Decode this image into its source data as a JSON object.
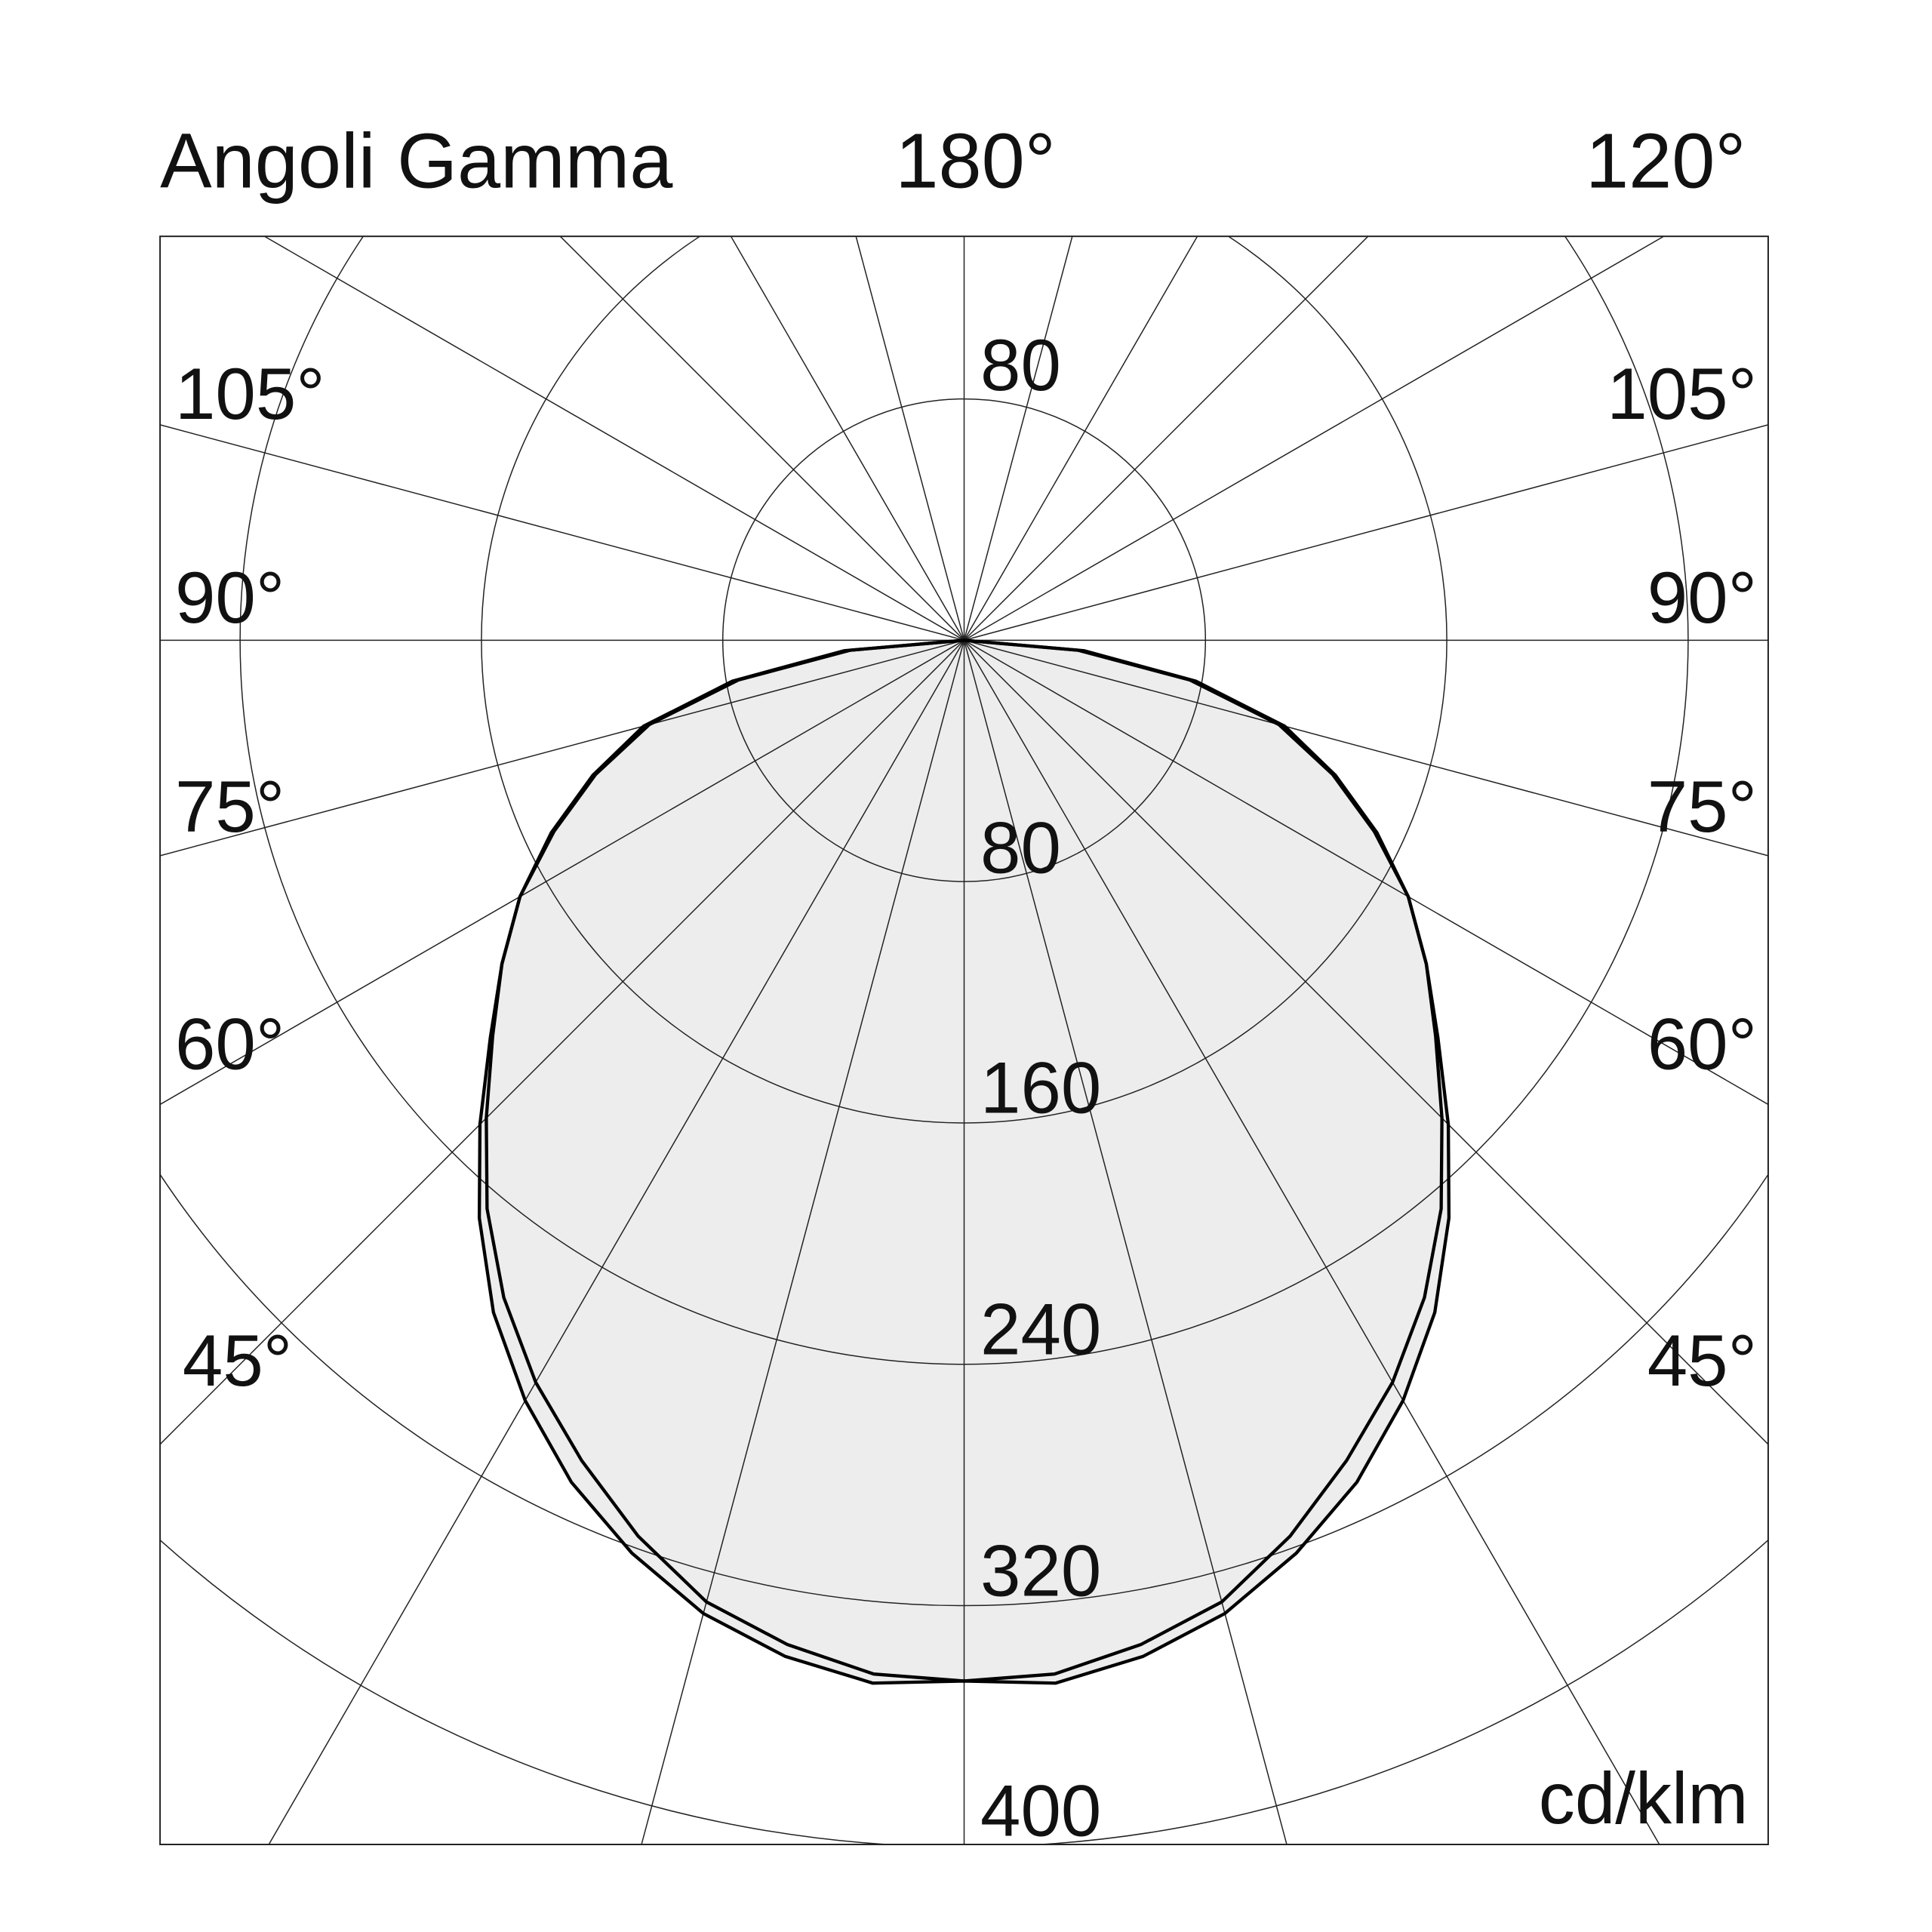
{
  "chart_data": {
    "type": "polar-line",
    "title": "Angoli Gamma",
    "unit_label": "cd/klm",
    "radial_ticks": [
      80,
      160,
      240,
      320,
      400
    ],
    "radial_tick_labels": {
      "top": "80",
      "bottom": [
        "80",
        "160",
        "240",
        "320",
        "400"
      ]
    },
    "rmax": 400,
    "angle_step_deg": 15,
    "angle_labels": {
      "top_center": "180°",
      "top_right": "120°",
      "left": [
        "105°",
        "90°",
        "75°",
        "60°",
        "45°"
      ],
      "right": [
        "105°",
        "90°",
        "75°",
        "60°",
        "45°"
      ]
    },
    "gamma_deg": [
      0,
      5,
      10,
      15,
      20,
      25,
      30,
      35,
      40,
      45,
      50,
      55,
      60,
      65,
      70,
      75,
      80,
      85,
      90
    ],
    "series": [
      {
        "values": [
          345,
          347,
          342,
          334,
          322,
          308,
          291,
          272,
          250,
          227,
          205,
          187,
          170,
          150,
          130,
          108,
          76,
          38,
          0
        ]
      },
      {
        "values": [
          345,
          344,
          338,
          330,
          316,
          300,
          284,
          266,
          246,
          224,
          204,
          187,
          170,
          151,
          131,
          110,
          78,
          40,
          0
        ]
      }
    ],
    "fill_color": "#ededed",
    "line_color": "#000000",
    "grid_color": "#222222",
    "grid": true
  }
}
